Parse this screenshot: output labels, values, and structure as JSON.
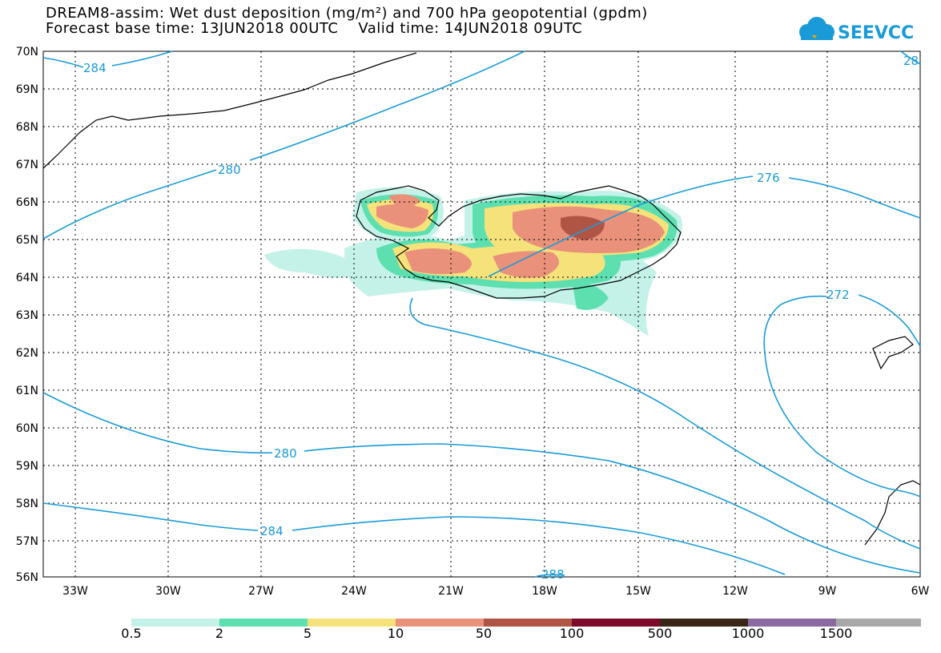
{
  "header": {
    "title_line1": "DREAM8-assim: Wet dust deposition (mg/m²) and 700 hPa geopotential (gpdm)",
    "title_line2": "Forecast base time: 13JUN2018 00UTC    Valid time: 14JUN2018 09UTC",
    "logo_text": "SEEVCCC",
    "logo_color": "#1a9bd7"
  },
  "map": {
    "lat_labels": [
      "70N",
      "69N",
      "68N",
      "67N",
      "66N",
      "65N",
      "64N",
      "63N",
      "62N",
      "61N",
      "60N",
      "59N",
      "58N",
      "57N",
      "56N"
    ],
    "lon_labels": [
      "33W",
      "30W",
      "27W",
      "24W",
      "21W",
      "18W",
      "15W",
      "12W",
      "9W",
      "6W"
    ],
    "contour_labels": [
      "284",
      "280",
      "276",
      "272",
      "280",
      "284",
      "288",
      "28"
    ],
    "contour_color": "#1a9bd7",
    "regions_shown": [
      "Iceland",
      "Greenland (east coast)",
      "Faroe Islands",
      "Scotland (north)"
    ]
  },
  "legend": {
    "colors": [
      "#c4f2e9",
      "#5ddfb0",
      "#f6e27a",
      "#e9917a",
      "#b05545",
      "#7d0a2a",
      "#3a2718",
      "#8a6a9f",
      "#a8a8a8"
    ],
    "labels": [
      "0.5",
      "2",
      "5",
      "10",
      "50",
      "100",
      "500",
      "1000",
      "1500"
    ]
  }
}
